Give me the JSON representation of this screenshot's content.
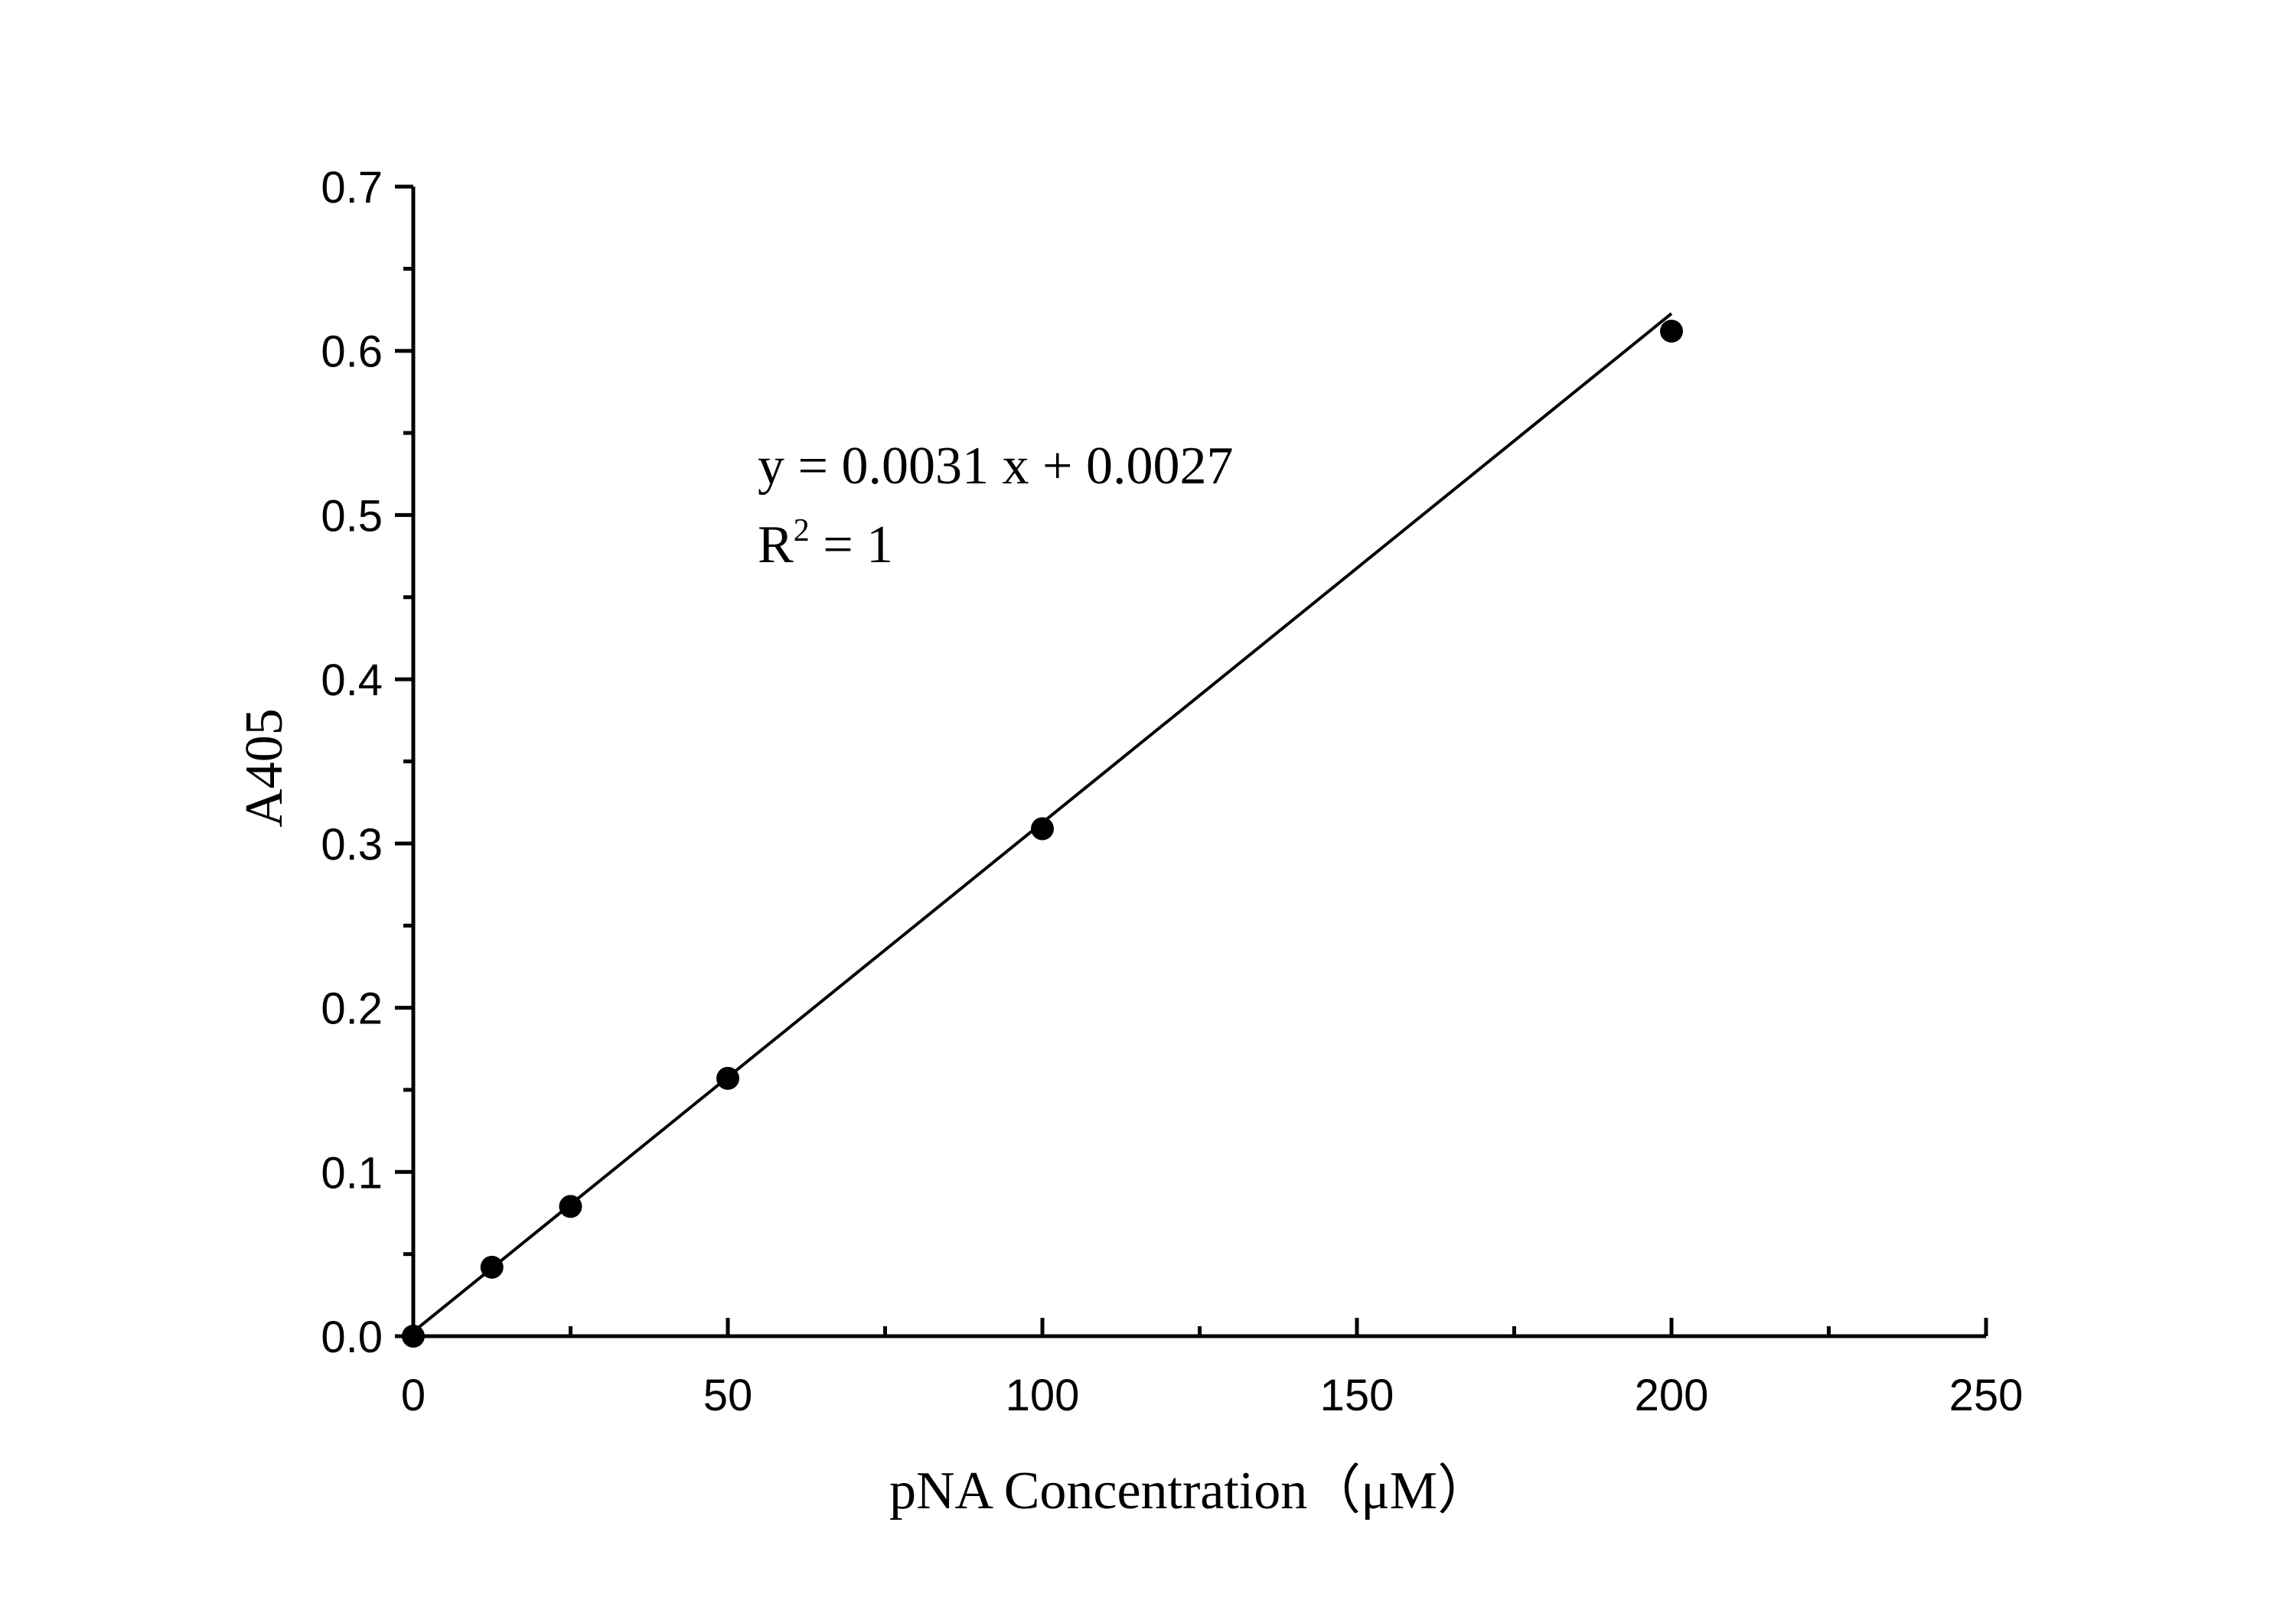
{
  "chart_data": {
    "type": "scatter",
    "xlabel": "pNA Concentration（μM）",
    "ylabel": "A405",
    "xlim": [
      0,
      250
    ],
    "ylim": [
      0,
      0.7
    ],
    "x_ticks": [
      "0",
      "50",
      "100",
      "150",
      "200",
      "250"
    ],
    "y_ticks": [
      "0.0",
      "0.1",
      "0.2",
      "0.3",
      "0.4",
      "0.5",
      "0.6",
      "0.7"
    ],
    "series": [
      {
        "x": [
          0,
          12.5,
          25,
          50,
          100,
          200
        ],
        "y": [
          0.0,
          0.042,
          0.079,
          0.157,
          0.309,
          0.612
        ]
      }
    ],
    "fit": {
      "slope": 0.0031,
      "intercept": 0.0027
    },
    "annotations": {
      "equation": "y = 0.0031 x + 0.0027",
      "r2_prefix": "R",
      "r2_sup": "2",
      "r2_suffix": " = 1"
    },
    "grid": false
  }
}
